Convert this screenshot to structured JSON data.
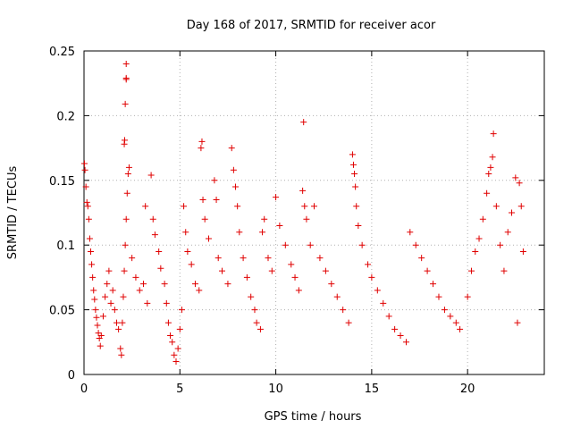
{
  "chart_data": {
    "type": "scatter",
    "title": "Day 168 of 2017, SRMTID for receiver acor",
    "xlabel": "GPS time / hours",
    "ylabel": "SRMTID / TECUs",
    "xlim": [
      0,
      24
    ],
    "ylim": [
      0,
      0.25
    ],
    "x_ticks": [
      "0",
      "5",
      "10",
      "15",
      "20"
    ],
    "y_ticks": [
      "0",
      "0.05",
      "0.1",
      "0.15",
      "0.2",
      "0.25"
    ],
    "x_tick_values": [
      0,
      5,
      10,
      15,
      20
    ],
    "y_tick_values": [
      0,
      0.05,
      0.1,
      0.15,
      0.2,
      0.25
    ],
    "grid": true,
    "marker": "+",
    "series_color": "#e00000",
    "series": [
      {
        "name": "SRMTID",
        "points": [
          [
            0.02,
            0.163
          ],
          [
            0.05,
            0.158
          ],
          [
            0.1,
            0.145
          ],
          [
            0.15,
            0.133
          ],
          [
            0.2,
            0.13
          ],
          [
            0.25,
            0.12
          ],
          [
            0.3,
            0.105
          ],
          [
            0.35,
            0.095
          ],
          [
            0.4,
            0.085
          ],
          [
            0.45,
            0.075
          ],
          [
            0.5,
            0.065
          ],
          [
            0.55,
            0.058
          ],
          [
            0.6,
            0.05
          ],
          [
            0.65,
            0.044
          ],
          [
            0.7,
            0.038
          ],
          [
            0.75,
            0.032
          ],
          [
            0.8,
            0.028
          ],
          [
            0.85,
            0.022
          ],
          [
            0.9,
            0.03
          ],
          [
            1.0,
            0.045
          ],
          [
            1.1,
            0.06
          ],
          [
            1.2,
            0.07
          ],
          [
            1.3,
            0.08
          ],
          [
            1.4,
            0.055
          ],
          [
            1.5,
            0.065
          ],
          [
            1.6,
            0.05
          ],
          [
            1.7,
            0.04
          ],
          [
            1.8,
            0.035
          ],
          [
            1.9,
            0.02
          ],
          [
            1.95,
            0.015
          ],
          [
            2.0,
            0.04
          ],
          [
            2.05,
            0.06
          ],
          [
            2.1,
            0.08
          ],
          [
            2.15,
            0.1
          ],
          [
            2.2,
            0.12
          ],
          [
            2.25,
            0.14
          ],
          [
            2.3,
            0.155
          ],
          [
            2.35,
            0.16
          ],
          [
            2.1,
            0.178
          ],
          [
            2.12,
            0.181
          ],
          [
            2.15,
            0.209
          ],
          [
            2.2,
            0.228
          ],
          [
            2.2,
            0.229
          ],
          [
            2.2,
            0.24
          ],
          [
            2.5,
            0.09
          ],
          [
            2.7,
            0.075
          ],
          [
            2.9,
            0.065
          ],
          [
            3.1,
            0.07
          ],
          [
            3.2,
            0.13
          ],
          [
            3.3,
            0.055
          ],
          [
            3.5,
            0.154
          ],
          [
            3.6,
            0.12
          ],
          [
            3.7,
            0.108
          ],
          [
            3.9,
            0.095
          ],
          [
            4.0,
            0.082
          ],
          [
            4.2,
            0.07
          ],
          [
            4.3,
            0.055
          ],
          [
            4.4,
            0.04
          ],
          [
            4.5,
            0.03
          ],
          [
            4.6,
            0.025
          ],
          [
            4.7,
            0.015
          ],
          [
            4.8,
            0.01
          ],
          [
            4.9,
            0.02
          ],
          [
            5.0,
            0.035
          ],
          [
            5.1,
            0.05
          ],
          [
            5.2,
            0.13
          ],
          [
            5.3,
            0.11
          ],
          [
            5.4,
            0.095
          ],
          [
            5.6,
            0.085
          ],
          [
            5.8,
            0.07
          ],
          [
            6.0,
            0.065
          ],
          [
            6.1,
            0.175
          ],
          [
            6.15,
            0.18
          ],
          [
            6.2,
            0.135
          ],
          [
            6.3,
            0.12
          ],
          [
            6.5,
            0.105
          ],
          [
            6.8,
            0.15
          ],
          [
            6.9,
            0.135
          ],
          [
            7.0,
            0.09
          ],
          [
            7.2,
            0.08
          ],
          [
            7.5,
            0.07
          ],
          [
            7.7,
            0.175
          ],
          [
            7.8,
            0.158
          ],
          [
            7.9,
            0.145
          ],
          [
            8.0,
            0.13
          ],
          [
            8.1,
            0.11
          ],
          [
            8.3,
            0.09
          ],
          [
            8.5,
            0.075
          ],
          [
            8.7,
            0.06
          ],
          [
            8.9,
            0.05
          ],
          [
            9.0,
            0.04
          ],
          [
            9.2,
            0.035
          ],
          [
            9.3,
            0.11
          ],
          [
            9.4,
            0.12
          ],
          [
            9.6,
            0.09
          ],
          [
            9.8,
            0.08
          ],
          [
            10.0,
            0.137
          ],
          [
            10.2,
            0.115
          ],
          [
            10.5,
            0.1
          ],
          [
            10.8,
            0.085
          ],
          [
            11.0,
            0.075
          ],
          [
            11.2,
            0.065
          ],
          [
            11.4,
            0.142
          ],
          [
            11.45,
            0.195
          ],
          [
            11.5,
            0.13
          ],
          [
            11.6,
            0.12
          ],
          [
            11.8,
            0.1
          ],
          [
            12.0,
            0.13
          ],
          [
            12.3,
            0.09
          ],
          [
            12.6,
            0.08
          ],
          [
            12.9,
            0.07
          ],
          [
            13.2,
            0.06
          ],
          [
            13.5,
            0.05
          ],
          [
            13.8,
            0.04
          ],
          [
            14.0,
            0.17
          ],
          [
            14.05,
            0.162
          ],
          [
            14.1,
            0.155
          ],
          [
            14.15,
            0.145
          ],
          [
            14.2,
            0.13
          ],
          [
            14.3,
            0.115
          ],
          [
            14.5,
            0.1
          ],
          [
            14.8,
            0.085
          ],
          [
            15.0,
            0.075
          ],
          [
            15.3,
            0.065
          ],
          [
            15.6,
            0.055
          ],
          [
            15.9,
            0.045
          ],
          [
            16.2,
            0.035
          ],
          [
            16.5,
            0.03
          ],
          [
            16.8,
            0.025
          ],
          [
            17.0,
            0.11
          ],
          [
            17.3,
            0.1
          ],
          [
            17.6,
            0.09
          ],
          [
            17.9,
            0.08
          ],
          [
            18.2,
            0.07
          ],
          [
            18.5,
            0.06
          ],
          [
            18.8,
            0.05
          ],
          [
            19.1,
            0.045
          ],
          [
            19.4,
            0.04
          ],
          [
            19.6,
            0.035
          ],
          [
            20.0,
            0.06
          ],
          [
            20.2,
            0.08
          ],
          [
            20.4,
            0.095
          ],
          [
            20.6,
            0.105
          ],
          [
            20.8,
            0.12
          ],
          [
            21.0,
            0.14
          ],
          [
            21.1,
            0.155
          ],
          [
            21.2,
            0.16
          ],
          [
            21.3,
            0.168
          ],
          [
            21.35,
            0.186
          ],
          [
            21.5,
            0.13
          ],
          [
            21.7,
            0.1
          ],
          [
            21.9,
            0.08
          ],
          [
            22.1,
            0.11
          ],
          [
            22.3,
            0.125
          ],
          [
            22.5,
            0.152
          ],
          [
            22.7,
            0.148
          ],
          [
            22.8,
            0.13
          ],
          [
            22.9,
            0.095
          ],
          [
            22.6,
            0.04
          ]
        ]
      }
    ]
  }
}
